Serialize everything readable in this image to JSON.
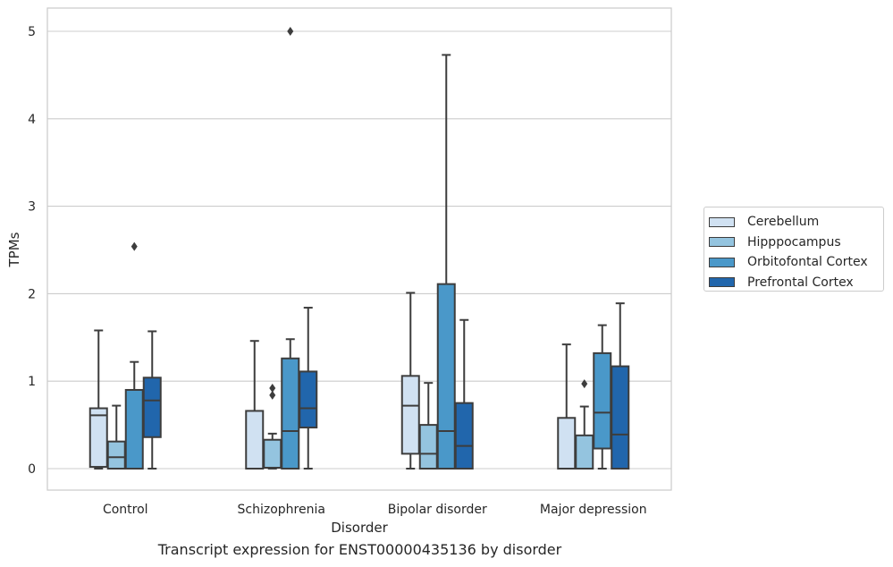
{
  "chart_data": {
    "type": "boxplot",
    "title": "",
    "caption": "Transcript expression for ENST00000435136 by disorder",
    "xlabel": "Disorder",
    "ylabel": "TPMs",
    "ylim": [
      -0.25,
      5.27
    ],
    "yticks": [
      0,
      1,
      2,
      3,
      4,
      5
    ],
    "grid": "y",
    "legend_position": "right",
    "categories": [
      "Control",
      "Schizophrenia",
      "Bipolar disorder",
      "Major depression"
    ],
    "series": [
      {
        "name": "Cerebellum",
        "color": "#d0e1f2",
        "boxes": [
          {
            "whislo": 0.0,
            "q1": 0.02,
            "med": 0.61,
            "q3": 0.69,
            "whishi": 1.58,
            "fliers": []
          },
          {
            "whislo": 0.0,
            "q1": 0.0,
            "med": 0.0,
            "q3": 0.66,
            "whishi": 1.46,
            "fliers": []
          },
          {
            "whislo": 0.0,
            "q1": 0.17,
            "med": 0.72,
            "q3": 1.06,
            "whishi": 2.01,
            "fliers": []
          },
          {
            "whislo": 0.0,
            "q1": 0.0,
            "med": 0.0,
            "q3": 0.58,
            "whishi": 1.42,
            "fliers": []
          }
        ]
      },
      {
        "name": "Hipppocampus",
        "color": "#94c4df",
        "boxes": [
          {
            "whislo": 0.0,
            "q1": 0.0,
            "med": 0.13,
            "q3": 0.31,
            "whishi": 0.72,
            "fliers": []
          },
          {
            "whislo": 0.0,
            "q1": 0.01,
            "med": 0.01,
            "q3": 0.33,
            "whishi": 0.4,
            "fliers": [
              0.84,
              0.92
            ]
          },
          {
            "whislo": 0.0,
            "q1": 0.0,
            "med": 0.17,
            "q3": 0.5,
            "whishi": 0.98,
            "fliers": []
          },
          {
            "whislo": 0.0,
            "q1": 0.0,
            "med": 0.0,
            "q3": 0.38,
            "whishi": 0.71,
            "fliers": [
              0.97
            ]
          }
        ]
      },
      {
        "name": "Orbitofontal Cortex",
        "color": "#4a98c9",
        "boxes": [
          {
            "whislo": 0.0,
            "q1": 0.0,
            "med": 0.0,
            "q3": 0.9,
            "whishi": 1.22,
            "fliers": [
              2.54
            ]
          },
          {
            "whislo": 0.0,
            "q1": 0.0,
            "med": 0.43,
            "q3": 1.26,
            "whishi": 1.48,
            "fliers": [
              5.0
            ]
          },
          {
            "whislo": 0.0,
            "q1": 0.0,
            "med": 0.43,
            "q3": 2.11,
            "whishi": 4.73,
            "fliers": []
          },
          {
            "whislo": 0.0,
            "q1": 0.23,
            "med": 0.64,
            "q3": 1.32,
            "whishi": 1.64,
            "fliers": []
          }
        ]
      },
      {
        "name": "Prefrontal Cortex",
        "color": "#2166ac",
        "boxes": [
          {
            "whislo": 0.0,
            "q1": 0.36,
            "med": 0.78,
            "q3": 1.04,
            "whishi": 1.57,
            "fliers": []
          },
          {
            "whislo": 0.0,
            "q1": 0.47,
            "med": 0.69,
            "q3": 1.11,
            "whishi": 1.84,
            "fliers": []
          },
          {
            "whislo": 0.0,
            "q1": 0.0,
            "med": 0.26,
            "q3": 0.75,
            "whishi": 1.7,
            "fliers": []
          },
          {
            "whislo": 0.0,
            "q1": 0.0,
            "med": 0.39,
            "q3": 1.17,
            "whishi": 1.89,
            "fliers": []
          }
        ]
      }
    ]
  }
}
